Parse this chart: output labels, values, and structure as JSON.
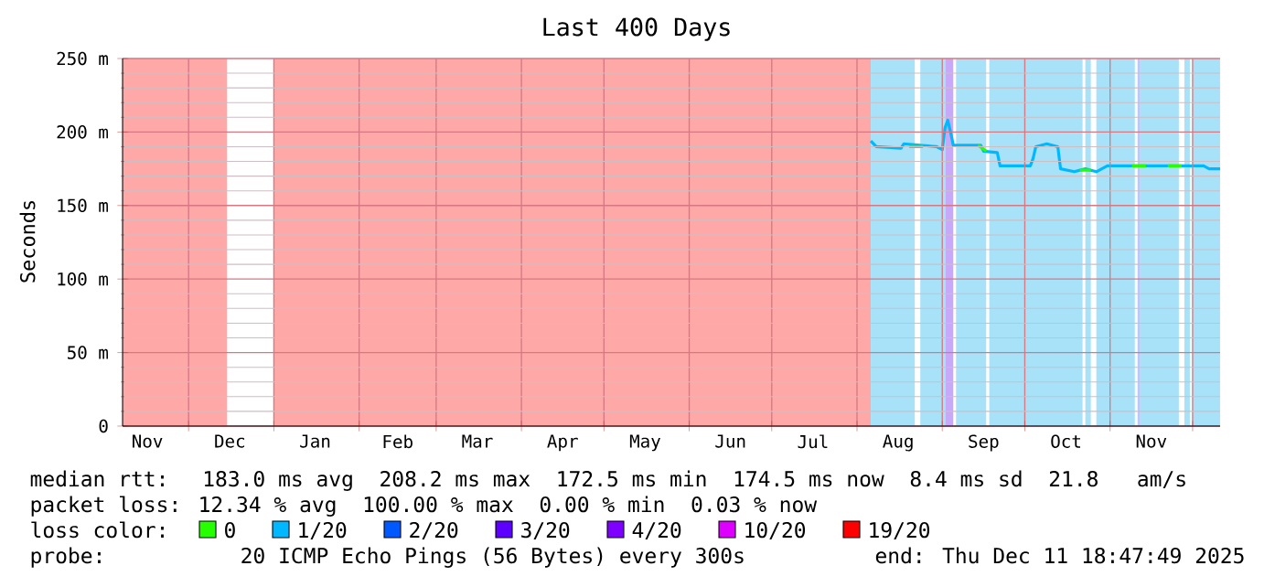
{
  "chart_data": {
    "type": "line",
    "title": "Last 400 Days",
    "ylabel": "Seconds",
    "xlim": [
      "2024-11-07",
      "2025-12-11"
    ],
    "xticks": [
      {
        "value": "2024-12-01",
        "label": null
      },
      {
        "value": "2025-01-01",
        "label": null
      },
      {
        "value": "2025-02-01",
        "label": null
      },
      {
        "value": "2025-03-01",
        "label": null
      },
      {
        "value": "2025-04-01",
        "label": null
      },
      {
        "value": "2025-05-01",
        "label": null
      },
      {
        "value": "2025-06-01",
        "label": null
      },
      {
        "value": "2025-07-01",
        "label": null
      },
      {
        "value": "2025-08-01",
        "label": null
      },
      {
        "value": "2025-09-01",
        "label": null
      },
      {
        "value": "2025-10-01",
        "label": null
      },
      {
        "value": "2025-11-01",
        "label": null
      },
      {
        "value": "2025-12-01",
        "label": null
      },
      {
        "value": "2024-11-16",
        "label": "Nov"
      },
      {
        "value": "2024-12-16",
        "label": "Dec"
      },
      {
        "value": "2025-01-16",
        "label": "Jan"
      },
      {
        "value": "2025-02-15",
        "label": "Feb"
      },
      {
        "value": "2025-03-16",
        "label": "Mar"
      },
      {
        "value": "2025-04-16",
        "label": "Apr"
      },
      {
        "value": "2025-05-16",
        "label": "May"
      },
      {
        "value": "2025-06-16",
        "label": "Jun"
      },
      {
        "value": "2025-07-16",
        "label": "Jul"
      },
      {
        "value": "2025-08-16",
        "label": "Aug"
      },
      {
        "value": "2025-09-16",
        "label": "Sep"
      },
      {
        "value": "2025-10-16",
        "label": "Oct"
      },
      {
        "value": "2025-11-16",
        "label": "Nov"
      }
    ],
    "ylim": [
      0,
      250
    ],
    "yticks": [
      {
        "value": 0,
        "label": "0"
      },
      {
        "value": 50,
        "label": "50 m"
      },
      {
        "value": 100,
        "label": "100 m"
      },
      {
        "value": 150,
        "label": "150 m"
      },
      {
        "value": 200,
        "label": "200 m"
      },
      {
        "value": 250,
        "label": "250 m"
      },
      {
        "value": 10,
        "label": null
      },
      {
        "value": 20,
        "label": null
      },
      {
        "value": 30,
        "label": null
      },
      {
        "value": 40,
        "label": null
      },
      {
        "value": 60,
        "label": null
      },
      {
        "value": 70,
        "label": null
      },
      {
        "value": 80,
        "label": null
      },
      {
        "value": 90,
        "label": null
      },
      {
        "value": 110,
        "label": null
      },
      {
        "value": 120,
        "label": null
      },
      {
        "value": 130,
        "label": null
      },
      {
        "value": 140,
        "label": null
      },
      {
        "value": 160,
        "label": null
      },
      {
        "value": 170,
        "label": null
      },
      {
        "value": 180,
        "label": null
      },
      {
        "value": 190,
        "label": null
      },
      {
        "value": 210,
        "label": null
      },
      {
        "value": 220,
        "label": null
      },
      {
        "value": 230,
        "label": null
      },
      {
        "value": 240,
        "label": null
      }
    ],
    "grid": true,
    "bands": [
      {
        "axis": "x",
        "from": "2024-11-07",
        "to": "2024-12-15",
        "color": "#ffa8a8"
      },
      {
        "axis": "x",
        "from": "2025-01-01",
        "to": "2025-08-06",
        "color": "#ffa8a8"
      },
      {
        "axis": "x",
        "from": "2025-08-06",
        "to": "2025-08-22",
        "color": "#a8e2f8"
      },
      {
        "axis": "x",
        "from": "2025-08-24",
        "to": "2025-09-02",
        "color": "#a8e2f8"
      },
      {
        "axis": "x",
        "from": "2025-09-02",
        "to": "2025-09-05",
        "color": "#c8a8f8"
      },
      {
        "axis": "x",
        "from": "2025-09-06",
        "to": "2025-09-17",
        "color": "#a8e2f8"
      },
      {
        "axis": "x",
        "from": "2025-09-18",
        "to": "2025-10-22",
        "color": "#a8e2f8"
      },
      {
        "axis": "x",
        "from": "2025-10-23",
        "to": "2025-10-25",
        "color": "#a8e2f8"
      },
      {
        "axis": "x",
        "from": "2025-10-27",
        "to": "2025-11-10",
        "color": "#a8e2f8"
      },
      {
        "axis": "x",
        "from": "2025-11-11",
        "to": "2025-11-12",
        "color": "#b8c8f8"
      },
      {
        "axis": "x",
        "from": "2025-11-12",
        "to": "2025-11-26",
        "color": "#a8e2f8"
      },
      {
        "axis": "x",
        "from": "2025-11-28",
        "to": "2025-11-30",
        "color": "#a8e2f8"
      },
      {
        "axis": "x",
        "from": "2025-12-01",
        "to": "2025-12-11",
        "color": "#a8e2f8"
      }
    ],
    "legend": "bottom",
    "legend_title": "loss color:",
    "series": [
      {
        "name": "0",
        "color": "#26ff00",
        "x": [
          "2025-08-20",
          "2025-08-25",
          "2025-08-26",
          "2025-09-14",
          "2025-09-17",
          "2025-09-18",
          "2025-10-21",
          "2025-10-25",
          "2025-10-26",
          "2025-11-09",
          "2025-11-14",
          "2025-11-15",
          "2025-11-22",
          "2025-11-27"
        ],
        "values": [
          190,
          190,
          null,
          191,
          187,
          null,
          174,
          174,
          null,
          177,
          177,
          null,
          177,
          177
        ]
      },
      {
        "name": "1/20",
        "color": "#00b8ff",
        "x": [
          "2025-08-06",
          "2025-08-08",
          "2025-08-17",
          "2025-08-18",
          "2025-08-30",
          "2025-09-01",
          "2025-09-02",
          "2025-09-03",
          "2025-09-04",
          "2025-09-05",
          "2025-09-15",
          "2025-09-16",
          "2025-09-21",
          "2025-09-22",
          "2025-10-03",
          "2025-10-04",
          "2025-10-05",
          "2025-10-09",
          "2025-10-13",
          "2025-10-14",
          "2025-10-19",
          "2025-10-23",
          "2025-10-27",
          "2025-10-31",
          "2025-11-05",
          "2025-12-05",
          "2025-12-07",
          "2025-12-11"
        ],
        "values": [
          194,
          190,
          189,
          192,
          190,
          188,
          203,
          208,
          200,
          191,
          191,
          187,
          186,
          177,
          177,
          182,
          190,
          192,
          190,
          175,
          173,
          175,
          173,
          177,
          177,
          177,
          175,
          175
        ]
      },
      {
        "name": "2/20",
        "color": "#0059ff"
      },
      {
        "name": "3/20",
        "color": "#5e00ff"
      },
      {
        "name": "4/20",
        "color": "#7e00ff"
      },
      {
        "name": "10/20",
        "color": "#dd00ff"
      },
      {
        "name": "19/20",
        "color": "#ff0000"
      }
    ],
    "annotations": [
      "median rtt:  183.0 ms avg  208.2 ms max  172.5 ms min  174.5 ms now  8.4 ms sd  21.8   am/s",
      "packet loss: 12.34 % avg  100.00 % max  0.00 % min  0.03 % now",
      "probe:        20 ICMP Echo Pings (56 Bytes) every 300s",
      "end: Thu Dec 11 18:47:49 2025"
    ]
  }
}
